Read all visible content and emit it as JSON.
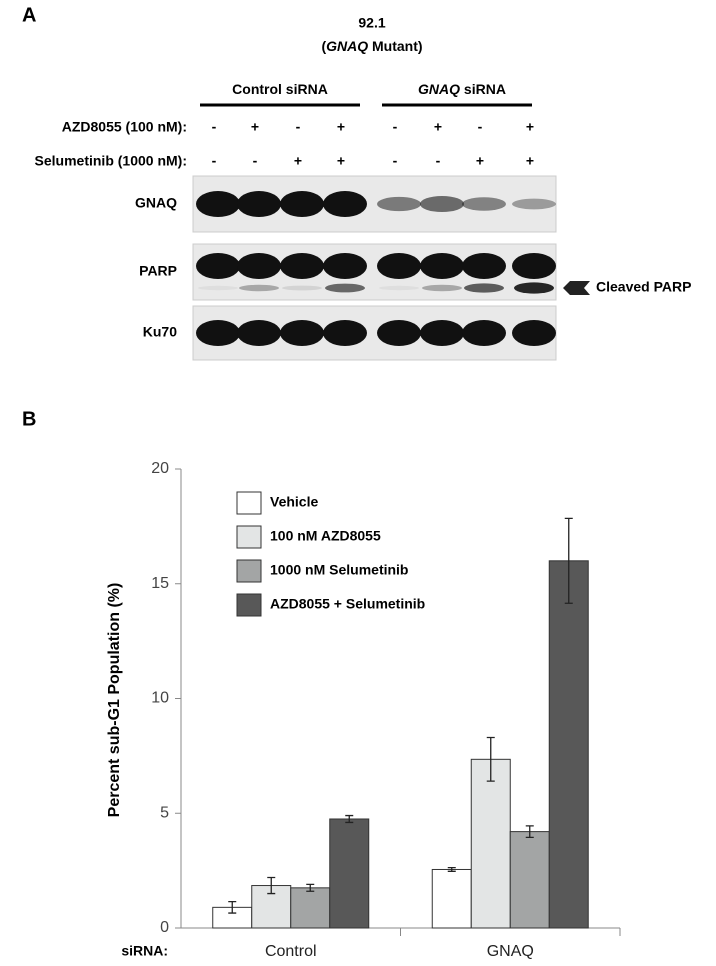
{
  "panel_a": {
    "label": "A",
    "title": "92.1",
    "subtitle": [
      "(",
      "GNAQ",
      " Mutant)"
    ],
    "groups": [
      [
        "Control siRNA"
      ],
      [
        "GNAQ",
        " siRNA"
      ]
    ],
    "treatments": [
      {
        "name": "AZD8055 (100 nM):",
        "signs": [
          "-",
          "+",
          "-",
          "+",
          "-",
          "+",
          "-",
          "+"
        ]
      },
      {
        "name": "Selumetinib (1000 nM):",
        "signs": [
          "-",
          "-",
          "+",
          "+",
          "-",
          "-",
          "+",
          "+"
        ]
      }
    ],
    "blots": [
      "GNAQ",
      "PARP",
      "Ku70"
    ],
    "annotation": "Cleaved PARP"
  },
  "chart_data": {
    "type": "bar",
    "panel_label": "B",
    "ylabel": "Percent sub-G1 Population (%)",
    "xlabel": "siRNA:",
    "categories": [
      "Control",
      "GNAQ"
    ],
    "series": [
      {
        "name": "Vehicle",
        "color": "#ffffff",
        "values": [
          0.9,
          2.55
        ],
        "errors": [
          0.25,
          0.08
        ]
      },
      {
        "name": "100 nM AZD8055",
        "color": "#e3e5e5",
        "values": [
          1.85,
          7.35
        ],
        "errors": [
          0.35,
          0.95
        ]
      },
      {
        "name": "1000 nM Selumetinib",
        "color": "#a3a5a5",
        "values": [
          1.75,
          4.2
        ],
        "errors": [
          0.15,
          0.25
        ]
      },
      {
        "name": "AZD8055 + Selumetinib",
        "color": "#585858",
        "values": [
          4.75,
          16.0
        ],
        "errors": [
          0.15,
          1.85
        ]
      }
    ],
    "ylim": [
      0,
      20
    ],
    "yticks": [
      0,
      5,
      10,
      15,
      20
    ]
  }
}
